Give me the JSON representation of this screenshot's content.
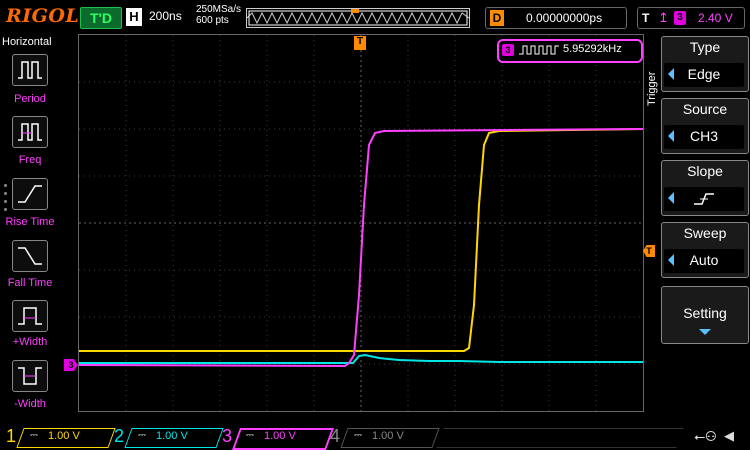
{
  "topbar": {
    "brand": "RIGOL",
    "status": "T'D",
    "h_label": "H",
    "timebase": "200ns",
    "sample_rate": "250MSa/s",
    "memory_depth": "600 pts",
    "delay_label": "D",
    "delay_value": "0.00000000ps",
    "trigger_label": "T",
    "trigger_channel": "3",
    "trigger_level": "2.40 V"
  },
  "left_panel": {
    "title": "Horizontal",
    "items": [
      {
        "label": "Period",
        "icon": "period-measure-icon"
      },
      {
        "label": "Freq",
        "icon": "freq-measure-icon"
      },
      {
        "label": "Rise Time",
        "icon": "rise-time-icon"
      },
      {
        "label": "Fall Time",
        "icon": "fall-time-icon"
      },
      {
        "label": "+Width",
        "icon": "pos-width-icon"
      },
      {
        "label": "-Width",
        "icon": "neg-width-icon"
      }
    ]
  },
  "measurement": {
    "channel": "3",
    "value": "5.95292kHz"
  },
  "right_panel": {
    "section_title": "Trigger",
    "type_label": "Type",
    "type_value": "Edge",
    "source_label": "Source",
    "source_value": "CH3",
    "slope_label": "Slope",
    "sweep_label": "Sweep",
    "sweep_value": "Auto",
    "setting_label": "Setting"
  },
  "markers": {
    "trigger_pos": "T",
    "trigger_level": "T",
    "ch3_ground": "3"
  },
  "channels": [
    {
      "num": "1",
      "coupling": "⎓",
      "scale": "1.00 V",
      "color": "#ffd700"
    },
    {
      "num": "2",
      "coupling": "⎓",
      "scale": "1.00 V",
      "color": "#00e5e5"
    },
    {
      "num": "3",
      "coupling": "⎓",
      "scale": "1.00 V",
      "color": "#ff40ff"
    },
    {
      "num": "4",
      "coupling": "⎓",
      "scale": "1.00 V",
      "color": "#888888"
    }
  ],
  "colors": {
    "ch1": "#ffd700",
    "ch2": "#00e5e5",
    "ch3": "#ff40ff",
    "accent": "#ff8c00"
  }
}
